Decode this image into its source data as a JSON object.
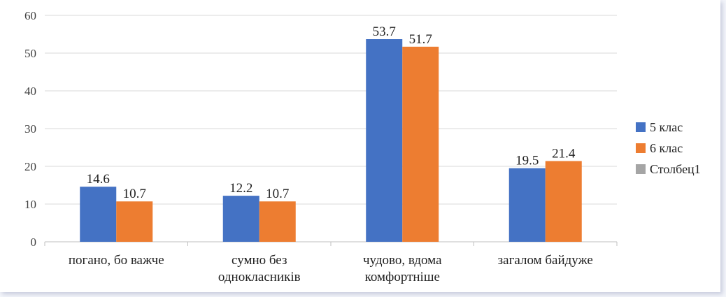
{
  "chart_data": {
    "type": "bar",
    "categories": [
      [
        "погано, бо важче"
      ],
      [
        "сумно без",
        "однокласників"
      ],
      [
        "чудово, вдома",
        "комфортніше"
      ],
      [
        "загалом байдуже"
      ]
    ],
    "series": [
      {
        "name": "5 клас",
        "color": "#4472c4",
        "values": [
          14.6,
          12.2,
          53.7,
          19.5
        ],
        "labels": [
          "14.6",
          "12.2",
          "53.7",
          "19.5"
        ]
      },
      {
        "name": "6 клас",
        "color": "#ed7d31",
        "values": [
          10.7,
          10.7,
          51.7,
          21.4
        ],
        "labels": [
          "10.7",
          "10.7",
          "51.7",
          "21.4"
        ]
      },
      {
        "name": "Столбец1",
        "color": "#a5a5a5",
        "values": [
          null,
          null,
          null,
          null
        ],
        "labels": []
      }
    ],
    "yticks": [
      "0",
      "10",
      "20",
      "30",
      "40",
      "50",
      "60"
    ],
    "ylim": [
      0,
      60
    ],
    "grid": true,
    "legend_position": "right"
  }
}
